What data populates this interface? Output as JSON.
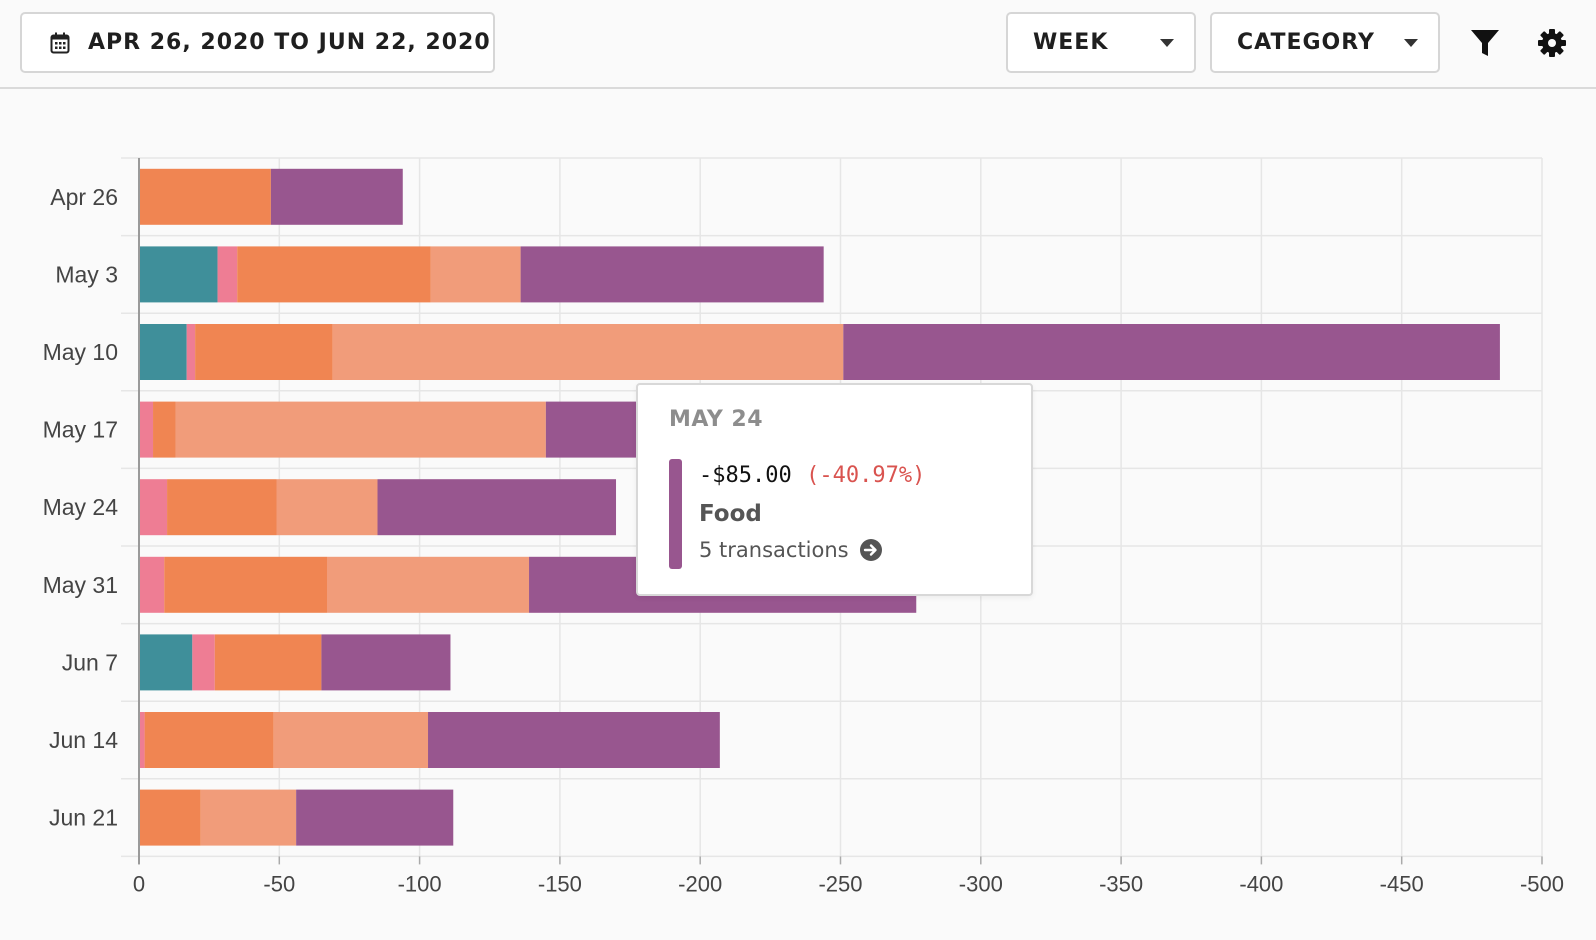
{
  "toolbar": {
    "date_range": "APR 26, 2020 TO JUN 22, 2020",
    "interval": "WEEK",
    "group_by": "CATEGORY",
    "icons": {
      "calendar": "calendar-icon",
      "interval_caret": "chevron-down-icon",
      "group_caret": "chevron-down-icon",
      "filter": "filter-icon",
      "settings": "gear-icon"
    }
  },
  "tooltip": {
    "date": "MAY 24",
    "amount": "-$85.00",
    "change": "(-40.97%)",
    "category": "Food",
    "transactions": "5 transactions",
    "swatch_color": "#98568f",
    "change_color": "#d9534f"
  },
  "chart_data": {
    "type": "bar",
    "orientation": "horizontal",
    "stacked": true,
    "categories": [
      "Apr 26",
      "May 3",
      "May 10",
      "May 17",
      "May 24",
      "May 31",
      "Jun 7",
      "Jun 14",
      "Jun 21"
    ],
    "series": [
      {
        "color": "#3f8f9a",
        "values": [
          0,
          -28,
          -17,
          0,
          0,
          0,
          -19,
          0,
          0
        ]
      },
      {
        "color": "#ee7d94",
        "values": [
          0,
          -7,
          -3,
          -5,
          -10,
          -9,
          -8,
          -2,
          0
        ]
      },
      {
        "color": "#f08552",
        "values": [
          -47,
          -69,
          -49,
          -8,
          -39,
          -58,
          -38,
          -46,
          -22
        ]
      },
      {
        "color": "#f19c7a",
        "values": [
          0,
          -32,
          -182,
          -132,
          -36,
          -72,
          0,
          -55,
          -34
        ]
      },
      {
        "color": "#98568f",
        "values": [
          -47,
          -108,
          -234,
          -33,
          -85,
          -138,
          -46,
          -104,
          -56
        ]
      }
    ],
    "x_ticks": [
      0,
      -50,
      -100,
      -150,
      -200,
      -250,
      -300,
      -350,
      -400,
      -450,
      -500
    ],
    "xlim": [
      0,
      -500
    ],
    "grid": true
  }
}
